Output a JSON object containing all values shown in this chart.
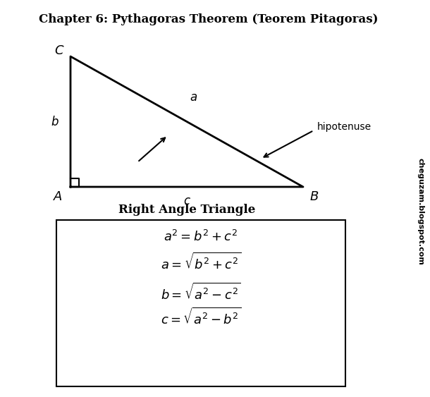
{
  "title": "Chapter 6: Pythagoras Theorem (Teorem Pitagoras)",
  "subtitle": "Right Angle Triangle",
  "formulas": [
    "$a^2 = b^2 + c^2$",
    "$a = \\sqrt{b^2 + c^2}$",
    "$b = \\sqrt{a^2 - c^2}$",
    "$c = \\sqrt{a^2 - b^2}$"
  ],
  "watermark": "cheguzam.blogspot.com",
  "bg_color": "#ffffff",
  "line_color": "#000000",
  "title_fontsize": 12,
  "subtitle_fontsize": 12,
  "formula_fontsize": 13,
  "vertex_fontsize": 13,
  "side_fontsize": 12
}
